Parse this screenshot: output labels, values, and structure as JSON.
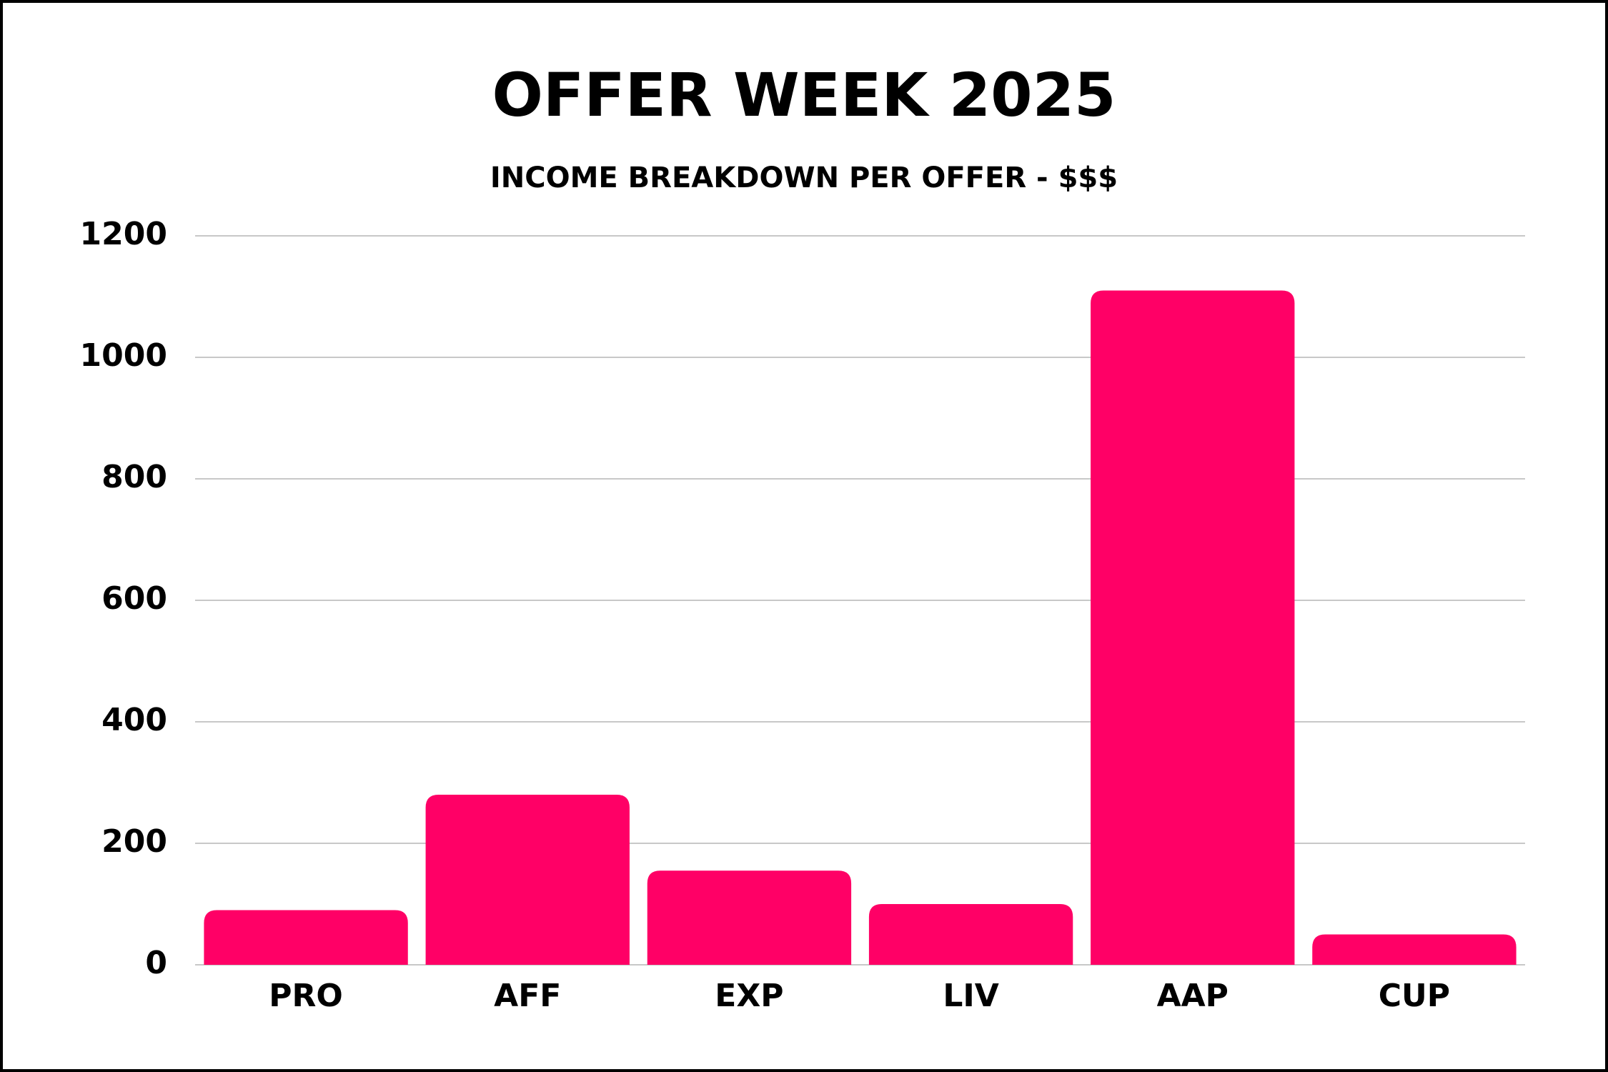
{
  "chart_data": {
    "type": "bar",
    "title": "OFFER WEEK 2025",
    "subtitle": "INCOME BREAKDOWN PER OFFER - $$$",
    "categories": [
      "PRO",
      "AFF",
      "EXP",
      "LIV",
      "AAP",
      "CUP"
    ],
    "values": [
      90,
      280,
      155,
      100,
      1110,
      50
    ],
    "color": "#ff0066",
    "ylim": [
      0,
      1200
    ],
    "yticks": [
      0,
      200,
      400,
      600,
      800,
      1000,
      1200
    ],
    "grid": true
  }
}
